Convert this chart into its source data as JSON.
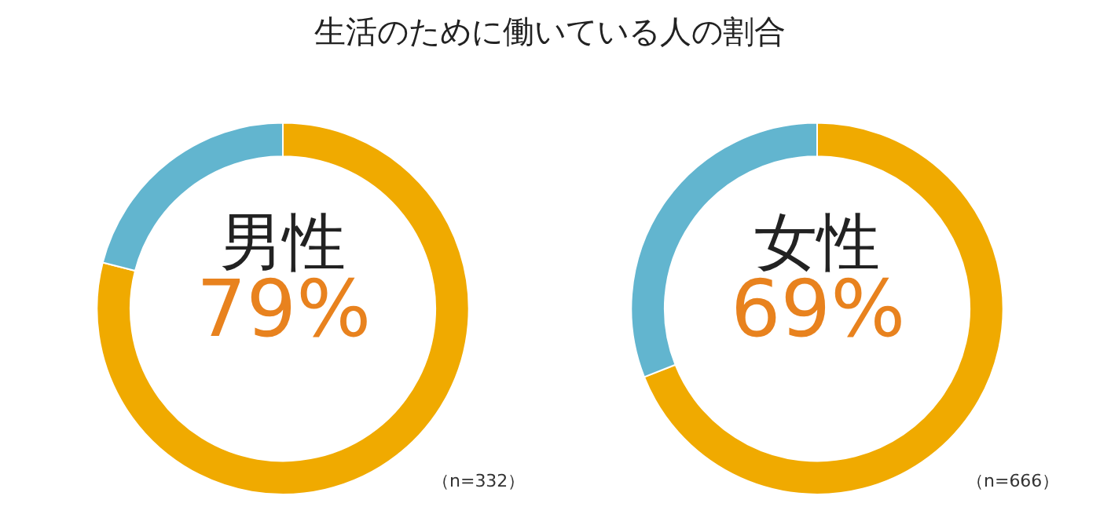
{
  "chart_data": [
    {
      "type": "donut",
      "title": "生活のために働いている人の割合",
      "categories": [
        null,
        null
      ],
      "values": [
        79,
        21
      ],
      "colors": [
        "#f0aa00",
        "#62b5cf"
      ],
      "value_labels": [
        "79%",
        null
      ],
      "annotations": [
        "男性",
        "（n=332）"
      ],
      "legend": false
    },
    {
      "type": "donut",
      "categories": [
        null,
        null
      ],
      "values": [
        69,
        31
      ],
      "colors": [
        "#f0aa00",
        "#62b5cf"
      ],
      "value_labels": [
        "69%",
        null
      ],
      "annotations": [
        "女性",
        "（n=666）"
      ],
      "legend": false
    }
  ]
}
